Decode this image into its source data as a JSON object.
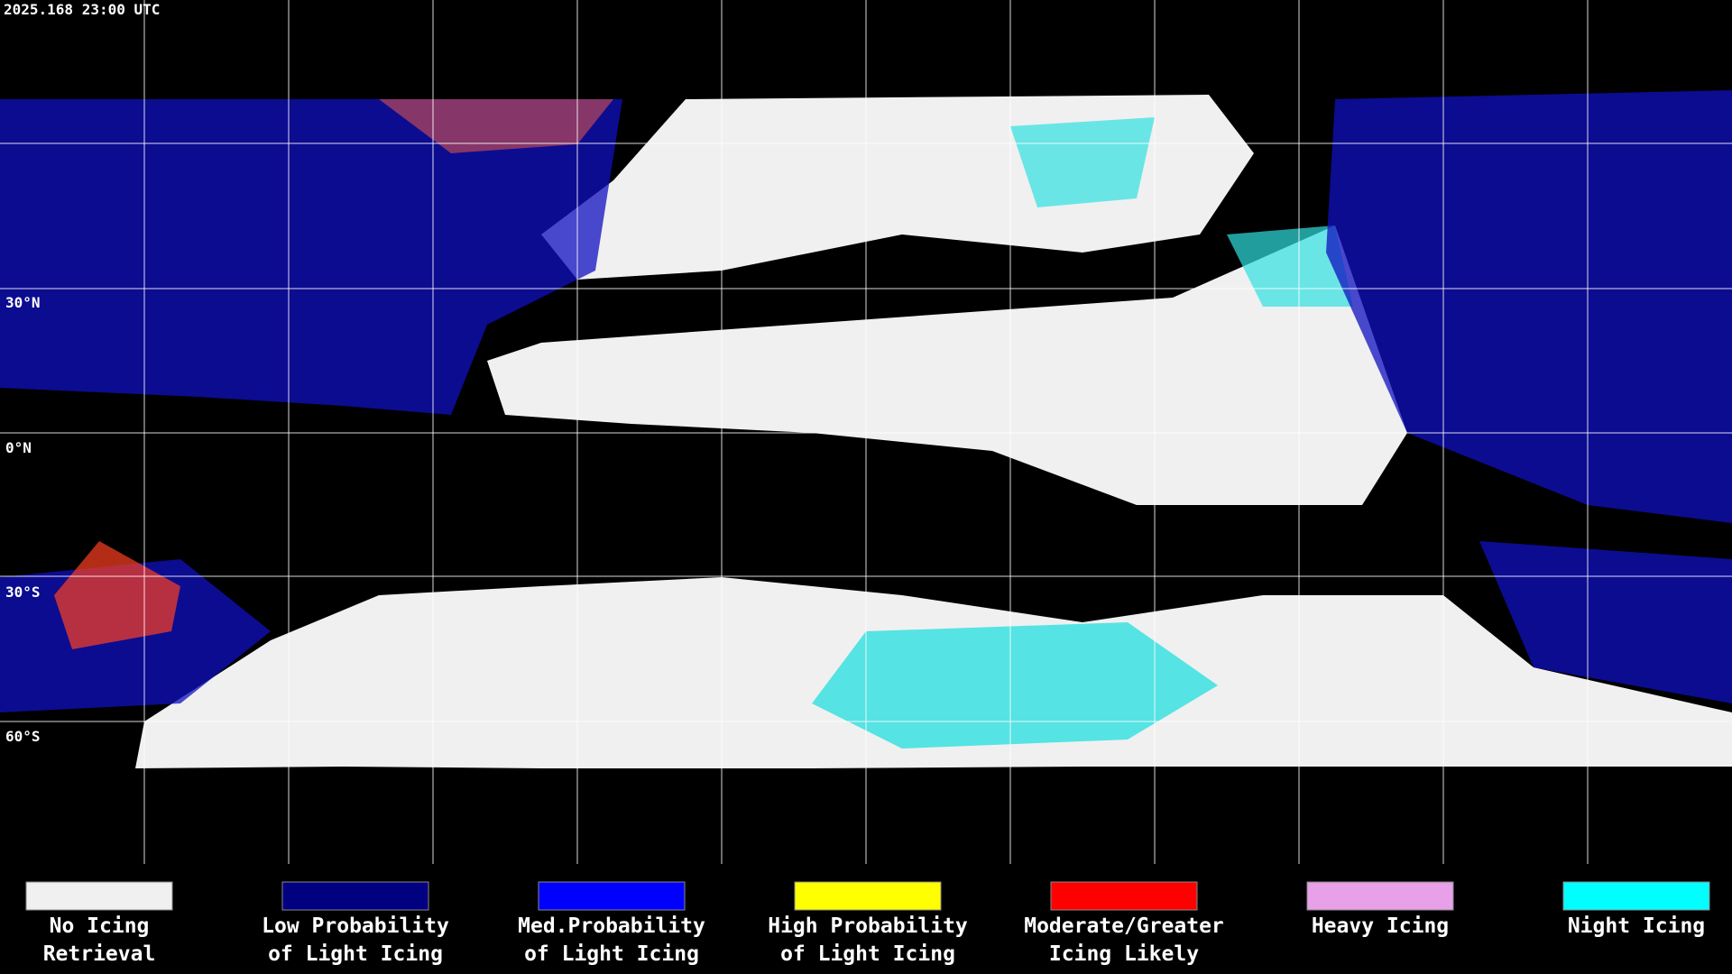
{
  "timestamp": "2025.168 23:00 UTC",
  "latitude_labels": [
    "30°N",
    "0°N",
    "30°S",
    "60°S"
  ],
  "legend": [
    {
      "lines": [
        "No Icing",
        "Retrieval"
      ],
      "color": "#f0f0f0"
    },
    {
      "lines": [
        "Low Probability",
        "of Light Icing"
      ],
      "color": "#000080"
    },
    {
      "lines": [
        "Med.Probability",
        "of Light Icing"
      ],
      "color": "#0000ff"
    },
    {
      "lines": [
        "High Probability",
        "of Light Icing"
      ],
      "color": "#ffff00"
    },
    {
      "lines": [
        "Moderate/Greater",
        "Icing Likely"
      ],
      "color": "#ff0000"
    },
    {
      "lines": [
        "Heavy Icing"
      ],
      "color": "#e8a0e8"
    },
    {
      "lines": [
        "Night Icing"
      ],
      "color": "#00ffff"
    }
  ]
}
